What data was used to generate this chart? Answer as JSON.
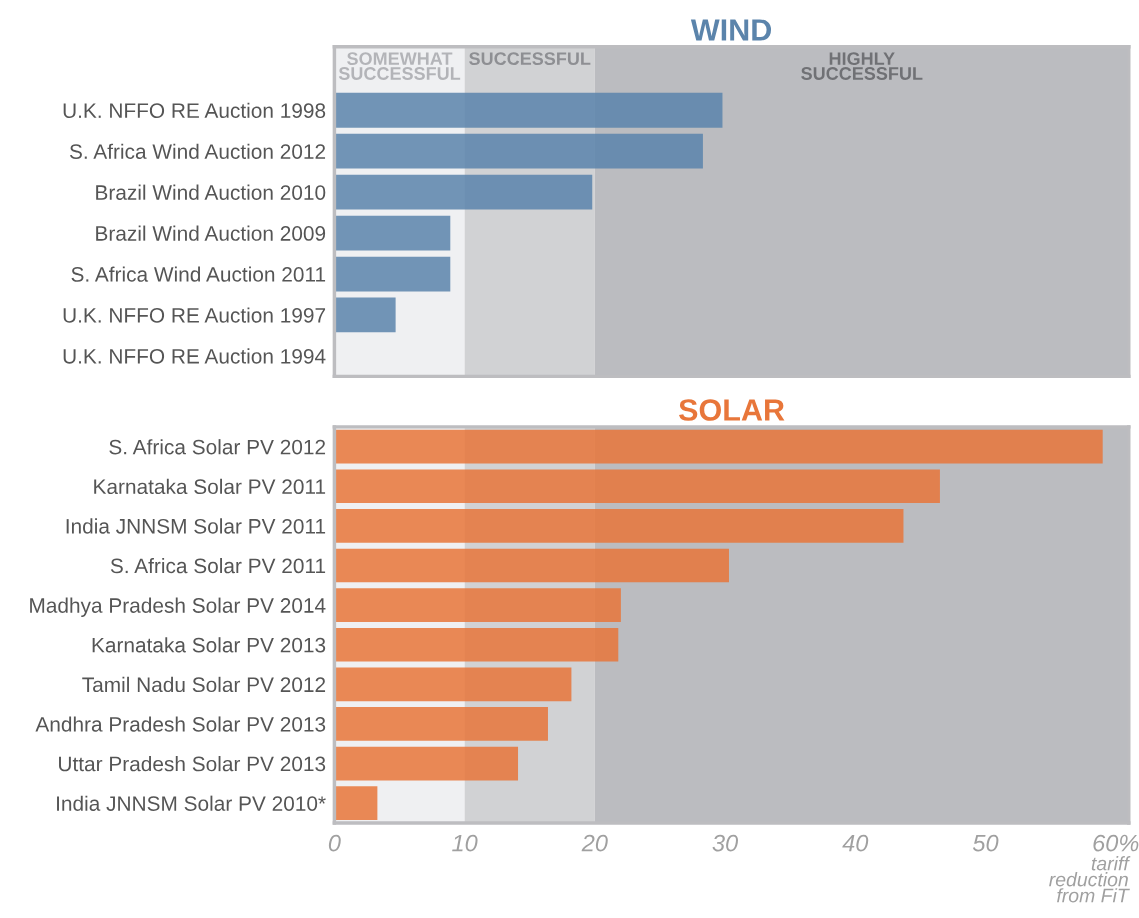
{
  "chart_data": [
    {
      "type": "bar",
      "orientation": "horizontal",
      "title": "WIND",
      "categories": [
        "U.K. NFFO RE Auction 1998",
        "S. Africa Wind Auction 2012",
        "Brazil Wind Auction 2010",
        "Brazil Wind Auction 2009",
        "S. Africa Wind Auction 2011",
        "U.K. NFFO RE Auction 1997",
        "U.K. NFFO RE Auction 1994"
      ],
      "series": [
        {
          "color": "#5b84ab",
          "values": [
            29.8,
            28.3,
            19.8,
            8.9,
            8.9,
            4.7,
            0
          ]
        }
      ],
      "xlim": [
        0,
        61
      ],
      "tick_labels": "y",
      "bands": [
        {
          "axis": "x",
          "from": 0,
          "to": 10,
          "label": "SOMEWHAT\nSUCCESSFUL",
          "color": "#eff0f2"
        },
        {
          "axis": "x",
          "from": 10,
          "to": 20,
          "label": "SUCCESSFUL",
          "color": "#d1d2d4"
        },
        {
          "axis": "x",
          "from": 20,
          "to": 61,
          "label": "HIGHLY\nSUCCESSFUL",
          "color": "#bbbcc0"
        }
      ],
      "grid": false,
      "legend": false
    },
    {
      "type": "bar",
      "orientation": "horizontal",
      "title": "SOLAR",
      "xlabel": "tariff\nreduction\nfrom FiT",
      "categories": [
        "S. Africa Solar PV 2012",
        "Karnataka Solar PV 2011",
        "India JNNSM Solar PV 2011",
        "S. Africa Solar PV 2011",
        "Madhya Pradesh Solar PV 2014",
        "Karnataka Solar PV 2013",
        "Tamil Nadu Solar PV 2012",
        "Andhra Pradesh Solar PV 2013",
        "Uttar Pradesh Solar PV 2013",
        "India JNNSM Solar PV 2010*"
      ],
      "series": [
        {
          "color": "#e8763a",
          "values": [
            59.0,
            46.5,
            43.7,
            30.3,
            22.0,
            21.8,
            18.2,
            16.4,
            14.1,
            3.3
          ]
        }
      ],
      "xlim": [
        0,
        61
      ],
      "xticks": [
        0,
        10,
        20,
        30,
        40,
        50,
        {
          "value": 60,
          "label": "60%"
        }
      ],
      "bands": [
        {
          "axis": "x",
          "from": 0,
          "to": 10,
          "color": "#eff0f2"
        },
        {
          "axis": "x",
          "from": 10,
          "to": 20,
          "color": "#d1d2d4"
        },
        {
          "axis": "x",
          "from": 20,
          "to": 61,
          "color": "#bbbcc0"
        }
      ],
      "grid": false,
      "legend": false
    }
  ]
}
